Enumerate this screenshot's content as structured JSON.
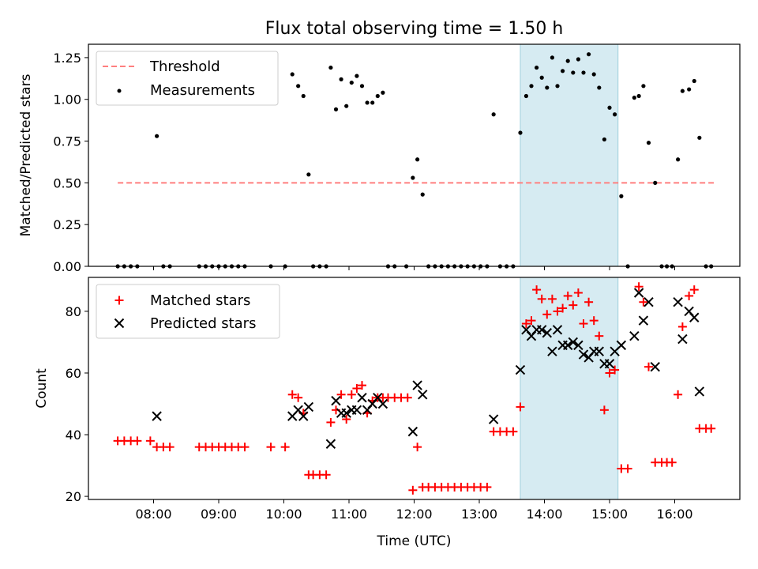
{
  "chart_data": [
    {
      "type": "scatter",
      "title": "Flux total observing time = 1.50 h",
      "xlabel": "",
      "ylabel": "Matched/Predicted stars",
      "xlim": [
        7.0,
        17.0
      ],
      "ylim": [
        0.0,
        1.33
      ],
      "yticks": [
        0.0,
        0.25,
        0.5,
        0.75,
        1.0,
        1.25
      ],
      "ytick_labels": [
        "0.00",
        "0.25",
        "0.50",
        "0.75",
        "1.00",
        "1.25"
      ],
      "highlight_span": [
        13.63,
        15.13
      ],
      "legend_position": "upper-left",
      "threshold": {
        "name": "Threshold",
        "y": 0.5,
        "x_range": [
          7.45,
          16.6
        ],
        "color": "#ff7f7f"
      },
      "series": [
        {
          "name": "Measurements",
          "marker": "dot",
          "color": "#000000",
          "points": [
            [
              7.45,
              0
            ],
            [
              7.55,
              0
            ],
            [
              7.65,
              0
            ],
            [
              7.75,
              0
            ],
            [
              8.05,
              0.78
            ],
            [
              8.15,
              0
            ],
            [
              8.25,
              0
            ],
            [
              8.7,
              0
            ],
            [
              8.8,
              0
            ],
            [
              8.9,
              0
            ],
            [
              9.0,
              0
            ],
            [
              9.1,
              0
            ],
            [
              9.2,
              0
            ],
            [
              9.3,
              0
            ],
            [
              9.4,
              0
            ],
            [
              9.8,
              0
            ],
            [
              10.02,
              0
            ],
            [
              10.13,
              1.15
            ],
            [
              10.22,
              1.08
            ],
            [
              10.3,
              1.02
            ],
            [
              10.38,
              0.55
            ],
            [
              10.45,
              0
            ],
            [
              10.55,
              0
            ],
            [
              10.65,
              0
            ],
            [
              10.72,
              1.19
            ],
            [
              10.8,
              0.94
            ],
            [
              10.88,
              1.12
            ],
            [
              10.96,
              0.96
            ],
            [
              11.04,
              1.1
            ],
            [
              11.12,
              1.14
            ],
            [
              11.2,
              1.08
            ],
            [
              11.28,
              0.98
            ],
            [
              11.36,
              0.98
            ],
            [
              11.44,
              1.02
            ],
            [
              11.52,
              1.04
            ],
            [
              11.6,
              0
            ],
            [
              11.7,
              0
            ],
            [
              11.88,
              0
            ],
            [
              11.98,
              0.53
            ],
            [
              12.05,
              0.64
            ],
            [
              12.13,
              0.43
            ],
            [
              12.22,
              0
            ],
            [
              12.32,
              0
            ],
            [
              12.42,
              0
            ],
            [
              12.52,
              0
            ],
            [
              12.62,
              0
            ],
            [
              12.72,
              0
            ],
            [
              12.82,
              0
            ],
            [
              12.92,
              0
            ],
            [
              13.02,
              0
            ],
            [
              13.12,
              0
            ],
            [
              13.22,
              0.91
            ],
            [
              13.32,
              0
            ],
            [
              13.42,
              0
            ],
            [
              13.52,
              0
            ],
            [
              13.63,
              0.8
            ],
            [
              13.72,
              1.02
            ],
            [
              13.8,
              1.08
            ],
            [
              13.88,
              1.19
            ],
            [
              13.96,
              1.13
            ],
            [
              14.04,
              1.07
            ],
            [
              14.12,
              1.25
            ],
            [
              14.2,
              1.08
            ],
            [
              14.28,
              1.17
            ],
            [
              14.36,
              1.23
            ],
            [
              14.44,
              1.16
            ],
            [
              14.52,
              1.24
            ],
            [
              14.6,
              1.16
            ],
            [
              14.68,
              1.27
            ],
            [
              14.76,
              1.15
            ],
            [
              14.84,
              1.07
            ],
            [
              14.92,
              0.76
            ],
            [
              15.0,
              0.95
            ],
            [
              15.08,
              0.91
            ],
            [
              15.18,
              0.42
            ],
            [
              15.28,
              0
            ],
            [
              15.38,
              1.01
            ],
            [
              15.45,
              1.02
            ],
            [
              15.52,
              1.08
            ],
            [
              15.6,
              0.74
            ],
            [
              15.7,
              0.5
            ],
            [
              15.8,
              0
            ],
            [
              15.88,
              0
            ],
            [
              15.96,
              0
            ],
            [
              16.05,
              0.64
            ],
            [
              16.12,
              1.05
            ],
            [
              16.22,
              1.06
            ],
            [
              16.3,
              1.11
            ],
            [
              16.38,
              0.77
            ],
            [
              16.48,
              0
            ],
            [
              16.56,
              0
            ]
          ]
        }
      ]
    },
    {
      "type": "scatter",
      "title": "",
      "xlabel": "Time (UTC)",
      "ylabel": "Count",
      "xlim": [
        7.0,
        17.0
      ],
      "ylim": [
        19.0,
        91.0
      ],
      "yticks": [
        20,
        40,
        60,
        80
      ],
      "ytick_labels": [
        "20",
        "40",
        "60",
        "80"
      ],
      "xticks": [
        8,
        9,
        10,
        11,
        12,
        13,
        14,
        15,
        16
      ],
      "xtick_labels": [
        "08:00",
        "09:00",
        "10:00",
        "11:00",
        "12:00",
        "13:00",
        "14:00",
        "15:00",
        "16:00"
      ],
      "highlight_span": [
        13.63,
        15.13
      ],
      "legend_position": "upper-left",
      "series": [
        {
          "name": "Matched stars",
          "marker": "plus",
          "color": "#ff0000",
          "points": [
            [
              7.45,
              38
            ],
            [
              7.55,
              38
            ],
            [
              7.65,
              38
            ],
            [
              7.75,
              38
            ],
            [
              7.95,
              38
            ],
            [
              8.05,
              36
            ],
            [
              8.15,
              36
            ],
            [
              8.25,
              36
            ],
            [
              8.7,
              36
            ],
            [
              8.8,
              36
            ],
            [
              8.9,
              36
            ],
            [
              9.0,
              36
            ],
            [
              9.1,
              36
            ],
            [
              9.2,
              36
            ],
            [
              9.3,
              36
            ],
            [
              9.4,
              36
            ],
            [
              9.8,
              36
            ],
            [
              10.02,
              36
            ],
            [
              10.13,
              53
            ],
            [
              10.22,
              52
            ],
            [
              10.3,
              47
            ],
            [
              10.38,
              27
            ],
            [
              10.45,
              27
            ],
            [
              10.55,
              27
            ],
            [
              10.65,
              27
            ],
            [
              10.72,
              44
            ],
            [
              10.8,
              48
            ],
            [
              10.88,
              53
            ],
            [
              10.96,
              45
            ],
            [
              11.04,
              53
            ],
            [
              11.12,
              55
            ],
            [
              11.2,
              56
            ],
            [
              11.28,
              47
            ],
            [
              11.36,
              51
            ],
            [
              11.44,
              52
            ],
            [
              11.52,
              52
            ],
            [
              11.6,
              52
            ],
            [
              11.7,
              52
            ],
            [
              11.8,
              52
            ],
            [
              11.9,
              52
            ],
            [
              11.98,
              22
            ],
            [
              12.05,
              36
            ],
            [
              12.13,
              23
            ],
            [
              12.22,
              23
            ],
            [
              12.32,
              23
            ],
            [
              12.42,
              23
            ],
            [
              12.52,
              23
            ],
            [
              12.62,
              23
            ],
            [
              12.72,
              23
            ],
            [
              12.82,
              23
            ],
            [
              12.92,
              23
            ],
            [
              13.02,
              23
            ],
            [
              13.12,
              23
            ],
            [
              13.22,
              41
            ],
            [
              13.32,
              41
            ],
            [
              13.42,
              41
            ],
            [
              13.52,
              41
            ],
            [
              13.63,
              49
            ],
            [
              13.72,
              76
            ],
            [
              13.8,
              77
            ],
            [
              13.88,
              87
            ],
            [
              13.96,
              84
            ],
            [
              14.04,
              79
            ],
            [
              14.12,
              84
            ],
            [
              14.2,
              80
            ],
            [
              14.28,
              81
            ],
            [
              14.36,
              85
            ],
            [
              14.44,
              82
            ],
            [
              14.52,
              86
            ],
            [
              14.6,
              76
            ],
            [
              14.68,
              83
            ],
            [
              14.76,
              77
            ],
            [
              14.84,
              72
            ],
            [
              14.92,
              48
            ],
            [
              15.0,
              60
            ],
            [
              15.08,
              61
            ],
            [
              15.18,
              29
            ],
            [
              15.28,
              29
            ],
            [
              15.45,
              88
            ],
            [
              15.52,
              83
            ],
            [
              15.6,
              62
            ],
            [
              15.7,
              31
            ],
            [
              15.8,
              31
            ],
            [
              15.88,
              31
            ],
            [
              15.96,
              31
            ],
            [
              16.05,
              53
            ],
            [
              16.12,
              75
            ],
            [
              16.22,
              85
            ],
            [
              16.3,
              87
            ],
            [
              16.38,
              42
            ],
            [
              16.48,
              42
            ],
            [
              16.56,
              42
            ]
          ]
        },
        {
          "name": "Predicted stars",
          "marker": "x",
          "color": "#000000",
          "points": [
            [
              8.05,
              46
            ],
            [
              10.13,
              46
            ],
            [
              10.22,
              48
            ],
            [
              10.3,
              46
            ],
            [
              10.38,
              49
            ],
            [
              10.72,
              37
            ],
            [
              10.8,
              51
            ],
            [
              10.88,
              47
            ],
            [
              10.96,
              47
            ],
            [
              11.04,
              48
            ],
            [
              11.12,
              48
            ],
            [
              11.2,
              52
            ],
            [
              11.28,
              48
            ],
            [
              11.36,
              50
            ],
            [
              11.44,
              52
            ],
            [
              11.52,
              50
            ],
            [
              11.98,
              41
            ],
            [
              12.05,
              56
            ],
            [
              12.13,
              53
            ],
            [
              13.22,
              45
            ],
            [
              13.63,
              61
            ],
            [
              13.72,
              74
            ],
            [
              13.8,
              72
            ],
            [
              13.88,
              74
            ],
            [
              13.96,
              74
            ],
            [
              14.04,
              73
            ],
            [
              14.12,
              67
            ],
            [
              14.2,
              74
            ],
            [
              14.28,
              69
            ],
            [
              14.36,
              69
            ],
            [
              14.44,
              70
            ],
            [
              14.52,
              69
            ],
            [
              14.6,
              66
            ],
            [
              14.68,
              65
            ],
            [
              14.76,
              67
            ],
            [
              14.84,
              67
            ],
            [
              14.92,
              63
            ],
            [
              15.0,
              63
            ],
            [
              15.08,
              67
            ],
            [
              15.18,
              69
            ],
            [
              15.38,
              72
            ],
            [
              15.45,
              86
            ],
            [
              15.52,
              77
            ],
            [
              15.6,
              83
            ],
            [
              15.7,
              62
            ],
            [
              16.05,
              83
            ],
            [
              16.12,
              71
            ],
            [
              16.22,
              80
            ],
            [
              16.3,
              78
            ],
            [
              16.38,
              54
            ]
          ]
        }
      ]
    }
  ]
}
